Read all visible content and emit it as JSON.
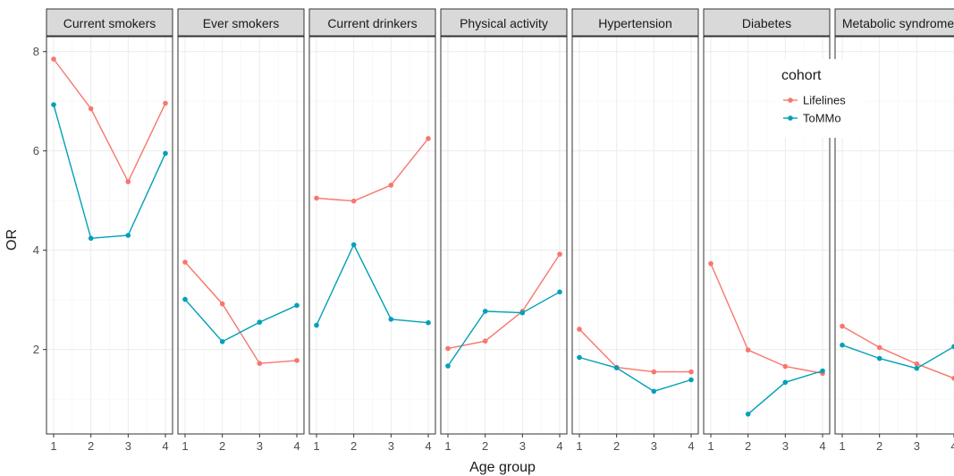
{
  "chart_data": {
    "type": "line",
    "xlabel": "Age group",
    "ylabel": "OR",
    "x": [
      1,
      2,
      3,
      4
    ],
    "x_ticks": [
      "1",
      "2",
      "3",
      "4"
    ],
    "y_ticks": [
      "2",
      "4",
      "6",
      "8"
    ],
    "ylim": [
      0.3,
      8.3
    ],
    "grid": true,
    "legend": {
      "title": "cohort",
      "placement": "inside-top-right",
      "entries": [
        "Lifelines",
        "ToMMo"
      ]
    },
    "colors": {
      "Lifelines": "#f8766d",
      "ToMMo": "#00a0b8"
    },
    "panels": [
      {
        "title": "Current smokers",
        "series": [
          {
            "name": "Lifelines",
            "values": [
              7.85,
              6.85,
              5.38,
              6.96
            ]
          },
          {
            "name": "ToMMo",
            "values": [
              6.93,
              4.24,
              4.3,
              5.95
            ]
          }
        ]
      },
      {
        "title": "Ever smokers",
        "series": [
          {
            "name": "Lifelines",
            "values": [
              3.76,
              2.92,
              1.72,
              1.78
            ]
          },
          {
            "name": "ToMMo",
            "values": [
              3.01,
              2.16,
              2.55,
              2.89
            ]
          }
        ]
      },
      {
        "title": "Current drinkers",
        "series": [
          {
            "name": "Lifelines",
            "values": [
              5.05,
              4.99,
              5.31,
              6.25
            ]
          },
          {
            "name": "ToMMo",
            "values": [
              2.49,
              4.11,
              2.61,
              2.54
            ]
          }
        ]
      },
      {
        "title": "Physical activity",
        "series": [
          {
            "name": "Lifelines",
            "values": [
              2.02,
              2.17,
              2.77,
              3.92
            ]
          },
          {
            "name": "ToMMo",
            "values": [
              1.67,
              2.77,
              2.74,
              3.16
            ]
          }
        ]
      },
      {
        "title": "Hypertension",
        "series": [
          {
            "name": "Lifelines",
            "values": [
              2.41,
              1.64,
              1.55,
              1.55
            ]
          },
          {
            "name": "ToMMo",
            "values": [
              1.84,
              1.63,
              1.16,
              1.39
            ]
          }
        ]
      },
      {
        "title": "Diabetes",
        "series": [
          {
            "name": "Lifelines",
            "values": [
              3.73,
              1.99,
              1.66,
              1.52
            ]
          },
          {
            "name": "ToMMo",
            "values": [
              null,
              0.7,
              1.34,
              1.57
            ]
          }
        ]
      },
      {
        "title": "Metabolic syndrome",
        "series": [
          {
            "name": "Lifelines",
            "values": [
              2.47,
              2.04,
              1.71,
              1.42
            ]
          },
          {
            "name": "ToMMo",
            "values": [
              2.09,
              1.82,
              1.62,
              2.06
            ]
          }
        ]
      }
    ]
  }
}
